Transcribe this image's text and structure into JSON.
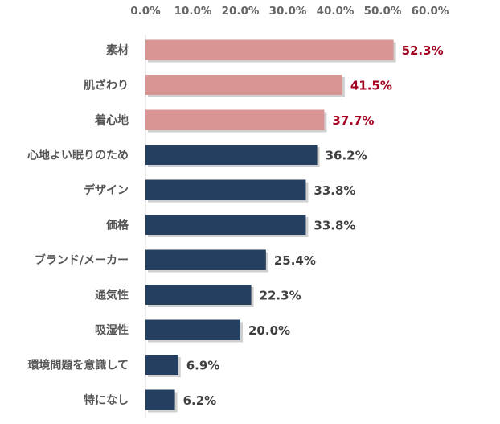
{
  "chart_data": {
    "type": "bar",
    "orientation": "horizontal",
    "title": "",
    "xlabel": "",
    "ylabel": "",
    "xlim": [
      0,
      60
    ],
    "ticks": [
      "0.0%",
      "10.0%",
      "20.0%",
      "30.0%",
      "40.0%",
      "50.0%",
      "60.0%"
    ],
    "tick_values": [
      0,
      10,
      20,
      30,
      40,
      50,
      60
    ],
    "axis_position": "top",
    "grid": false,
    "categories": [
      "素材",
      "肌ざわり",
      "着心地",
      "心地よい眠りのため",
      "デザイン",
      "価格",
      "ブランド/メーカー",
      "通気性",
      "吸湿性",
      "環境問題を意識して",
      "特になし"
    ],
    "values": [
      52.3,
      41.5,
      37.7,
      36.2,
      33.8,
      33.8,
      25.4,
      22.3,
      20.0,
      6.9,
      6.2
    ],
    "value_labels": [
      "52.3%",
      "41.5%",
      "37.7%",
      "36.2%",
      "33.8%",
      "33.8%",
      "25.4%",
      "22.3%",
      "20.0%",
      "6.9%",
      "6.2%"
    ],
    "highlighted_count": 3,
    "colors": {
      "highlight_bar": "#d99594",
      "normal_bar": "#243f60",
      "highlight_label": "#a50021",
      "normal_label": "#404040",
      "shadow": "#bfbfbf",
      "axis": "#d9d9d9"
    }
  }
}
